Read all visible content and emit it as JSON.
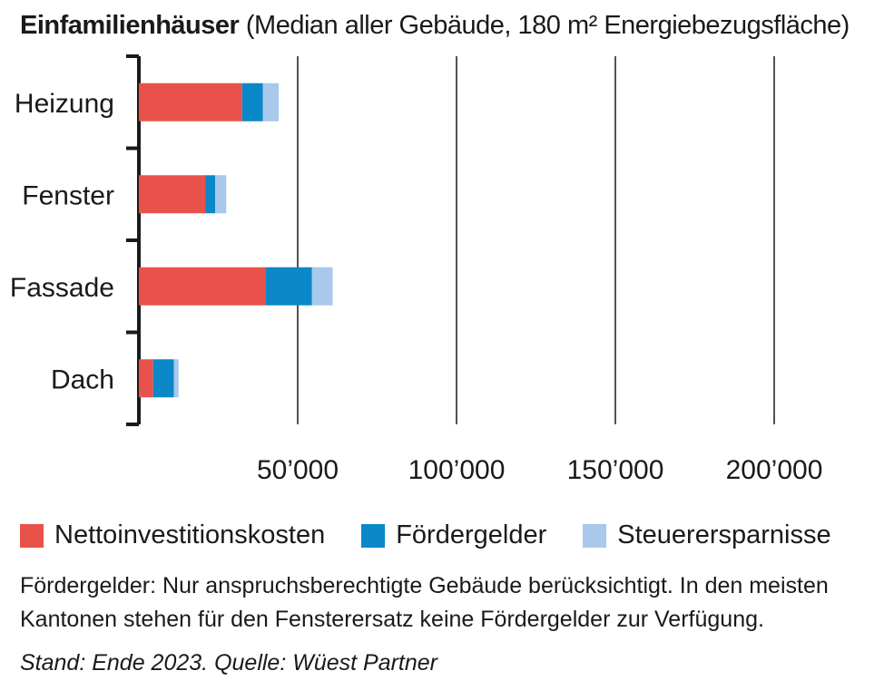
{
  "header": {
    "title_bold": "Einfamilienhäuser",
    "title_rest": "(Median aller Gebäude, 180 m² Energiebezugsfläche)"
  },
  "chart_data": {
    "type": "bar",
    "orientation": "horizontal",
    "stacked": true,
    "categories": [
      "Heizung",
      "Fenster",
      "Fassade",
      "Dach"
    ],
    "series": [
      {
        "name": "Nettoinvestitionskosten",
        "color": "#e8524a",
        "values": [
          32500,
          21000,
          40000,
          4500
        ]
      },
      {
        "name": "Fördergelder",
        "color": "#0a88c8",
        "values": [
          6500,
          3000,
          14500,
          6500
        ]
      },
      {
        "name": "Steuerersparnisse",
        "color": "#a8c8ec",
        "values": [
          5000,
          3500,
          6500,
          1500
        ]
      }
    ],
    "xlim": [
      0,
      225000
    ],
    "xticks": [
      50000,
      100000,
      150000,
      200000
    ],
    "xtick_labels": [
      "50’000",
      "100’000",
      "150’000",
      "200’000"
    ],
    "grid": "vertical",
    "legend_position": "bottom"
  },
  "legend": [
    {
      "label": "Nettoinvestitionskosten",
      "color": "#e8524a"
    },
    {
      "label": "Fördergelder",
      "color": "#0a88c8"
    },
    {
      "label": "Steuerersparnisse",
      "color": "#a8c8ec"
    }
  ],
  "note": "Fördergelder: Nur anspruchsberechtigte Gebäude berücksichtigt. In den meisten Kantonen stehen für den Fensterersatz keine Fördergelder zur Verfügung.",
  "source": "Stand: Ende 2023. Quelle: Wüest Partner"
}
